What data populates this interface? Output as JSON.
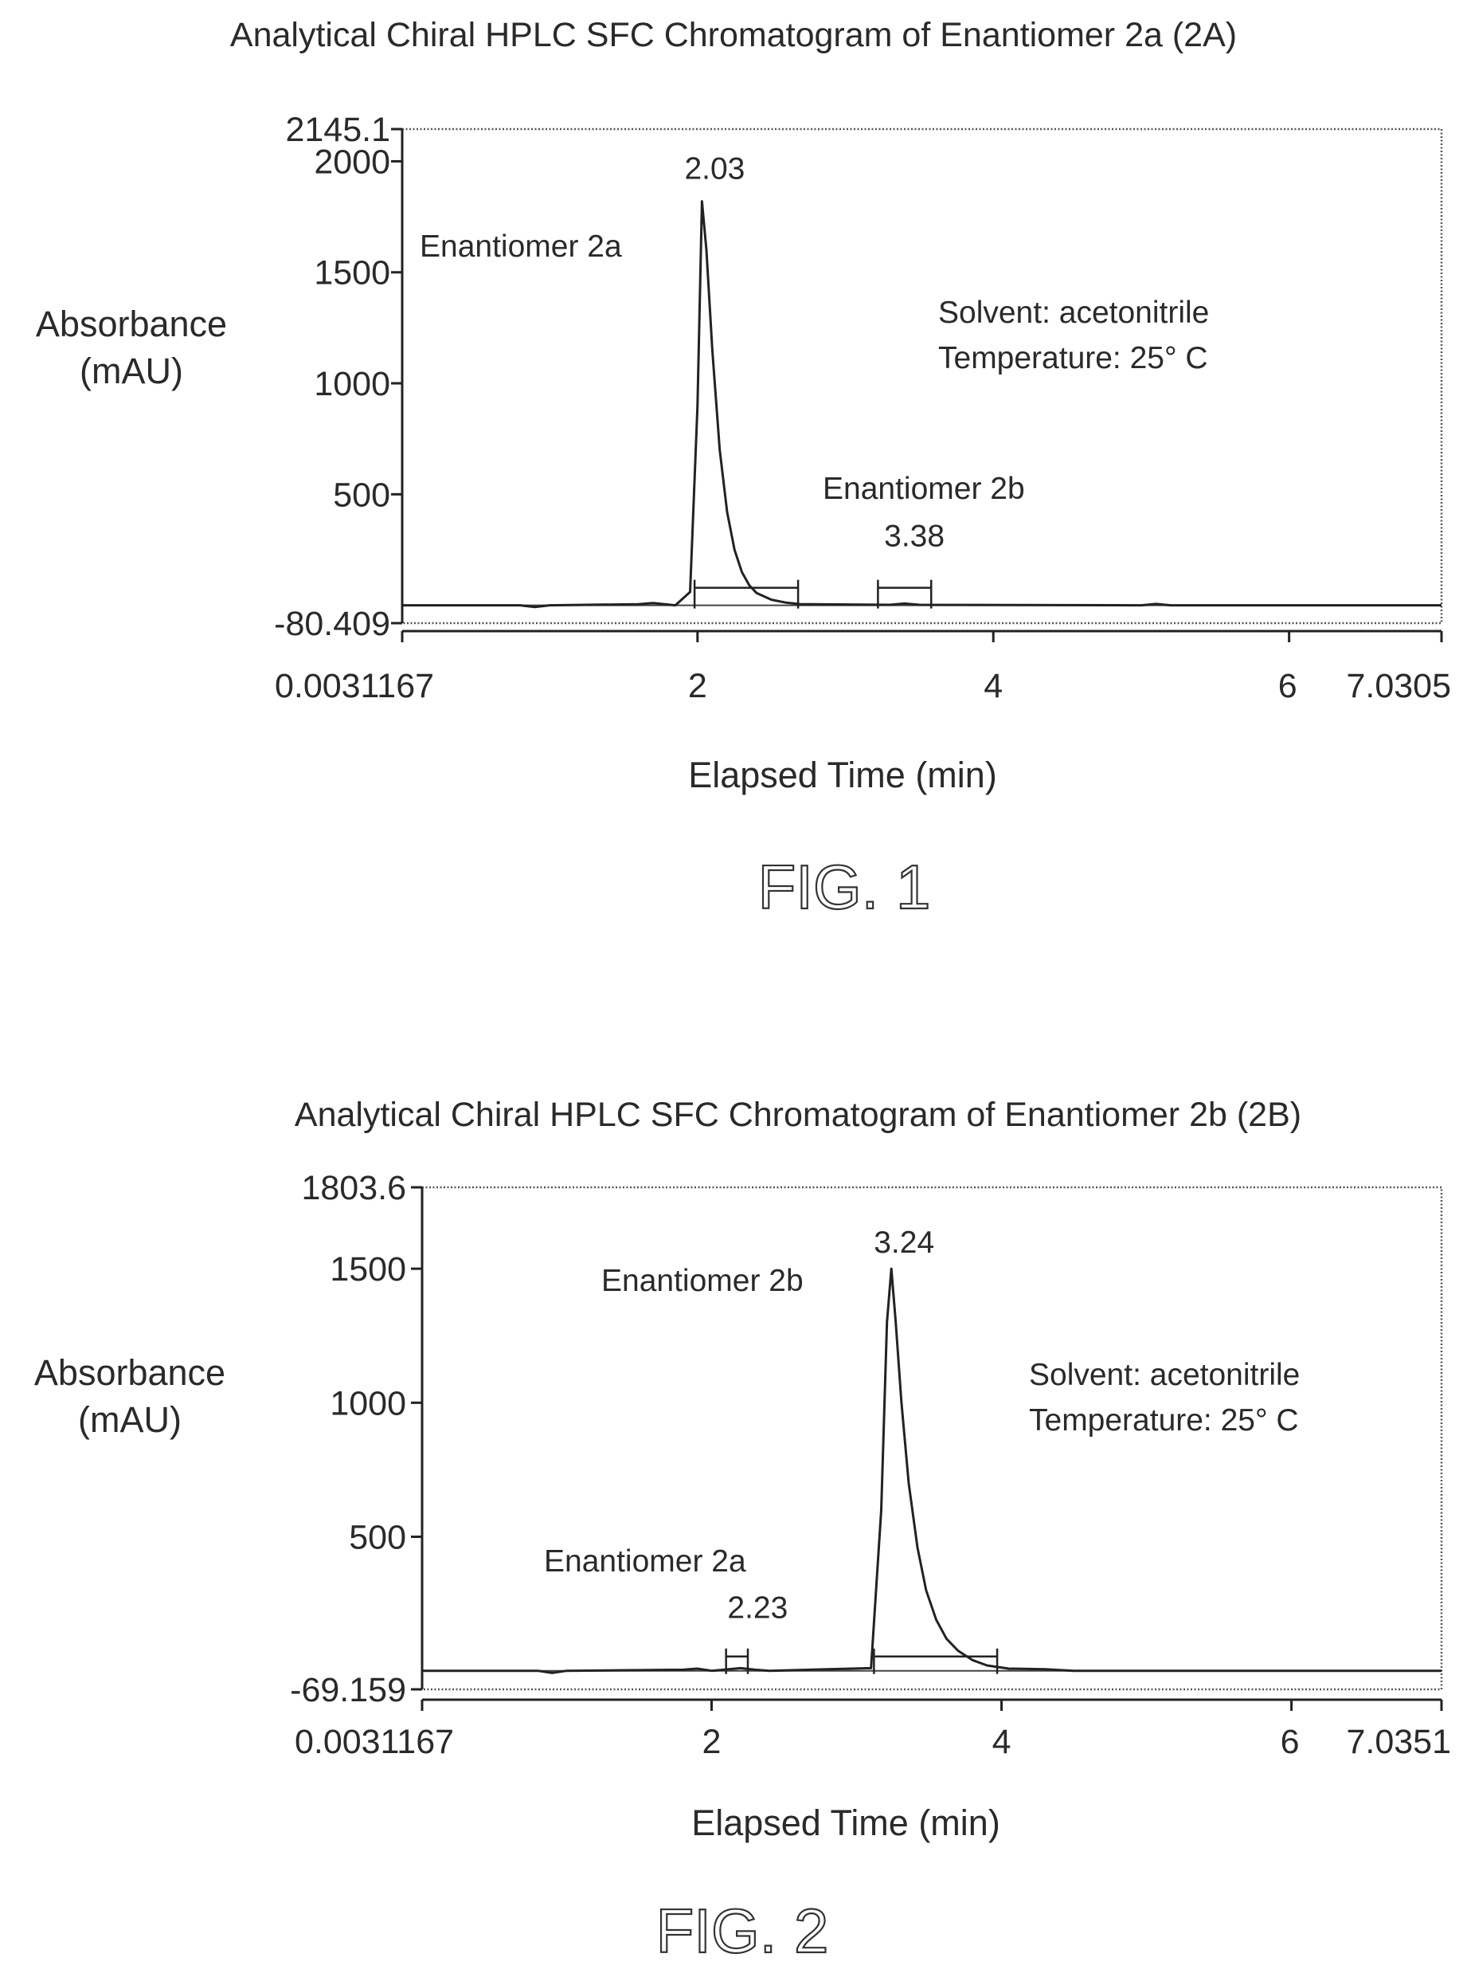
{
  "chart_data": [
    {
      "type": "line",
      "title": "Analytical Chiral HPLC SFC Chromatogram of Enantiomer 2a (2A)",
      "xlabel": "Elapsed Time (min)",
      "ylabel_lines": [
        "Absorbance",
        "(mAU)"
      ],
      "xlim": [
        0.0031167,
        7.0305
      ],
      "ylim": [
        -80.409,
        2145.1
      ],
      "x_tick_labels": [
        "0.0031167",
        "2",
        "4",
        "6",
        "7.0305"
      ],
      "x_tick_values": [
        0.0031167,
        2,
        4,
        6,
        7.0305
      ],
      "y_tick_labels": [
        "2145.1",
        "2000",
        "1500",
        "1000",
        "500",
        "-80.409"
      ],
      "y_tick_values": [
        2145.1,
        2000,
        1500,
        1000,
        500,
        -80.409
      ],
      "conditions": [
        "Solvent: acetonitrile",
        "Temperature: 25° C"
      ],
      "peaks": [
        {
          "label": "2.03",
          "name": "Enantiomer 2a",
          "x": 2.03,
          "y": 1820,
          "bracket": [
            1.98,
            2.68
          ]
        },
        {
          "label": "3.38",
          "name": "Enantiomer 2b",
          "x": 3.38,
          "y": 0,
          "bracket": [
            3.22,
            3.58
          ]
        }
      ],
      "series": [
        {
          "x": [
            0.0031167,
            0.8,
            0.9,
            1.0,
            1.6,
            1.7,
            1.85,
            1.95,
            2.0,
            2.03,
            2.06,
            2.1,
            2.15,
            2.2,
            2.25,
            2.3,
            2.35,
            2.4,
            2.5,
            2.6,
            2.7,
            3.3,
            3.4,
            3.5,
            5.0,
            5.1,
            5.2,
            7.0305
          ],
          "y": [
            0,
            0,
            -8,
            0,
            5,
            10,
            0,
            60,
            900,
            1820,
            1600,
            1150,
            700,
            420,
            250,
            150,
            90,
            55,
            25,
            12,
            5,
            2,
            8,
            2,
            0,
            6,
            0,
            0
          ]
        }
      ],
      "figure_label": "FIG. 1"
    },
    {
      "type": "line",
      "title": "Analytical Chiral HPLC SFC Chromatogram of Enantiomer 2b (2B)",
      "xlabel": "Elapsed Time (min)",
      "ylabel_lines": [
        "Absorbance",
        "(mAU)"
      ],
      "xlim": [
        0.0031167,
        7.0351
      ],
      "ylim": [
        -69.159,
        1803.6
      ],
      "x_tick_labels": [
        "0.0031167",
        "2",
        "4",
        "6",
        "7.0351"
      ],
      "x_tick_values": [
        0.0031167,
        2,
        4,
        6,
        7.0351
      ],
      "y_tick_labels": [
        "1803.6",
        "1500",
        "1000",
        "500",
        "-69.159"
      ],
      "y_tick_values": [
        1803.6,
        1500,
        1000,
        500,
        -69.159
      ],
      "conditions": [
        "Solvent: acetonitrile",
        "Temperature: 25° C"
      ],
      "peaks": [
        {
          "label": "3.24",
          "name": "Enantiomer 2b",
          "x": 3.24,
          "y": 1500,
          "bracket": [
            3.12,
            3.97
          ]
        },
        {
          "label": "2.23",
          "name": "Enantiomer 2a",
          "x": 2.23,
          "y": 0,
          "bracket": [
            2.1,
            2.25
          ]
        }
      ],
      "series": [
        {
          "x": [
            0.0031167,
            0.8,
            0.9,
            1.0,
            1.8,
            1.9,
            2.0,
            2.2,
            2.3,
            2.4,
            3.1,
            3.17,
            3.21,
            3.24,
            3.27,
            3.31,
            3.36,
            3.42,
            3.48,
            3.55,
            3.62,
            3.7,
            3.8,
            3.9,
            4.05,
            4.3,
            4.5,
            7.0351
          ],
          "y": [
            0,
            0,
            -8,
            0,
            4,
            8,
            0,
            10,
            4,
            0,
            10,
            600,
            1300,
            1500,
            1300,
            1000,
            700,
            460,
            300,
            190,
            120,
            75,
            40,
            20,
            8,
            6,
            0,
            0
          ]
        }
      ],
      "figure_label": "FIG. 2"
    }
  ]
}
